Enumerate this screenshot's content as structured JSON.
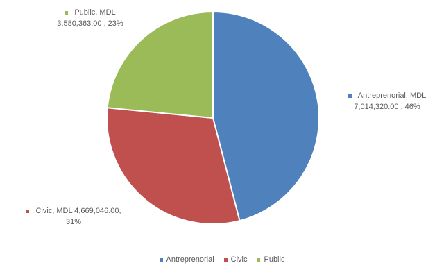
{
  "chart_data": {
    "type": "pie",
    "title": "",
    "currency": "MDL",
    "categories": [
      "Antreprenorial",
      "Civic",
      "Public"
    ],
    "values": [
      7014320.0,
      4669046.0,
      3580363.0
    ],
    "percents": [
      46,
      31,
      23
    ],
    "colors": [
      "#4F81BD",
      "#C0504D",
      "#9BBB59"
    ],
    "labels": [
      {
        "line1": "Antreprenorial,  MDL",
        "line2": "7,014,320.00 , 46%"
      },
      {
        "line1": "Civic, MDL 4,669,046.00,",
        "line2": "31%"
      },
      {
        "line1": "Public,  MDL",
        "line2": "3,580,363.00 , 23%"
      }
    ],
    "legend": {
      "position": "bottom",
      "items": [
        "Antreprenorial",
        "Civic",
        "Public"
      ]
    }
  }
}
